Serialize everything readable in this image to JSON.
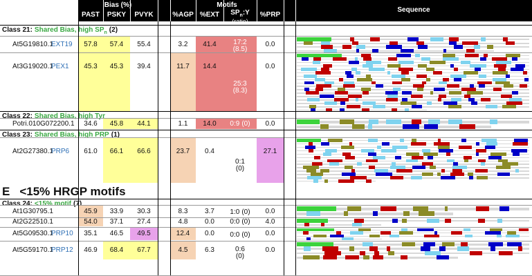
{
  "header": {
    "groups": [
      "Bias (%)",
      "Motifs",
      "Sequence"
    ],
    "columns": [
      "PAST",
      "PSKY",
      "PVYK",
      "%AGP",
      "%EXT",
      {
        "main": "SP",
        "sub": "n",
        "rest": ":Y",
        "note": "(ratio)"
      },
      "%PRP"
    ]
  },
  "section": {
    "letter": "E",
    "title": "<15% HRGP motifs",
    "before_class": 3
  },
  "shades": {
    "Y": "#ffff99",
    "T": "#f6d3b4",
    "R": "#e88282",
    "M": "#e8a2ea"
  },
  "classes": [
    {
      "label": "Class 21:",
      "title": {
        "main": "Shared Bias, high SP",
        "sub": "n"
      },
      "count": "(2)",
      "rows": [
        {
          "id": "At5G19810.1",
          "name": "EXT19",
          "cells": [
            "57.8",
            "57.4",
            "55.4",
            "3.2",
            "41.4",
            {
              "ratio": "17:2",
              "value": "(8.5)"
            },
            "0.0"
          ],
          "shade": [
            "Y",
            "Y",
            null,
            null,
            "R",
            "R",
            null
          ]
        },
        {
          "id": "At3G19020.1",
          "name": "PEX1",
          "cells": [
            "45.3",
            "45.3",
            "39.4",
            "11.7",
            "14.4",
            {
              "ratio": "25:3",
              "value": "(8.3)"
            },
            "0.0"
          ],
          "shade": [
            "Y",
            "Y",
            null,
            "T",
            "R",
            "R",
            null
          ]
        }
      ]
    },
    {
      "label": "Class 22:",
      "title": {
        "main": "Shared Bias, high Tyr"
      },
      "rows": [
        {
          "id": "Potri.010G072200.1",
          "cells": [
            "34.6",
            "45.8",
            "44.1",
            "1.1",
            "14.0",
            {
              "ratio": "0:9",
              "value": "(0)"
            },
            "0.0"
          ],
          "shade": [
            null,
            "Y",
            "Y",
            null,
            "R",
            "R",
            null
          ]
        }
      ]
    },
    {
      "label": "Class 23:",
      "title": {
        "main": "Shared Bias, high PRP"
      },
      "count": "(1)",
      "rows": [
        {
          "id": "At2G27380.1",
          "name": "PRP6",
          "cells": [
            "61.0",
            "66.1",
            "66.6",
            "23.7",
            "0.4",
            {
              "ratio": "0:1",
              "value": "(0)"
            },
            "27.1"
          ],
          "shade": [
            null,
            "Y",
            "Y",
            "T",
            null,
            null,
            "M"
          ]
        }
      ]
    },
    {
      "label": "Class 24:",
      "title": {
        "main": "<15% motif"
      },
      "count": "(7)",
      "rows": [
        {
          "id": "At1G30795.1",
          "cells": [
            "45.9",
            "33.9",
            "30.3",
            "8.3",
            "3.7",
            {
              "ratio": "1:0",
              "value": "(0)"
            },
            "0.0"
          ],
          "shade": [
            "T",
            null,
            null,
            null,
            null,
            null,
            null
          ]
        },
        {
          "id": "At2G22510.1",
          "cells": [
            "54.0",
            "37.1",
            "27.4",
            "4.8",
            "0.0",
            {
              "ratio": "0:0",
              "value": "(0)"
            },
            "4.0"
          ],
          "shade": [
            "T",
            null,
            null,
            null,
            null,
            null,
            null
          ]
        },
        {
          "id": "At5G09530.1",
          "name": "PRP10",
          "cells": [
            "35.1",
            "46.5",
            "49.5",
            "12.4",
            "0.0",
            {
              "ratio": "0:0",
              "value": "(0)"
            },
            "0.0"
          ],
          "shade": [
            null,
            null,
            "M",
            "T",
            null,
            null,
            null
          ]
        },
        {
          "id": "At5G59170.1",
          "name": "PRP12",
          "cells": [
            "46.9",
            "68.4",
            "67.7",
            "4.5",
            "6.3",
            {
              "ratio": "0:6",
              "value": "(0)"
            },
            "0.0"
          ],
          "shade": [
            null,
            "Y",
            "Y",
            "T",
            null,
            null,
            null
          ]
        }
      ]
    }
  ]
}
